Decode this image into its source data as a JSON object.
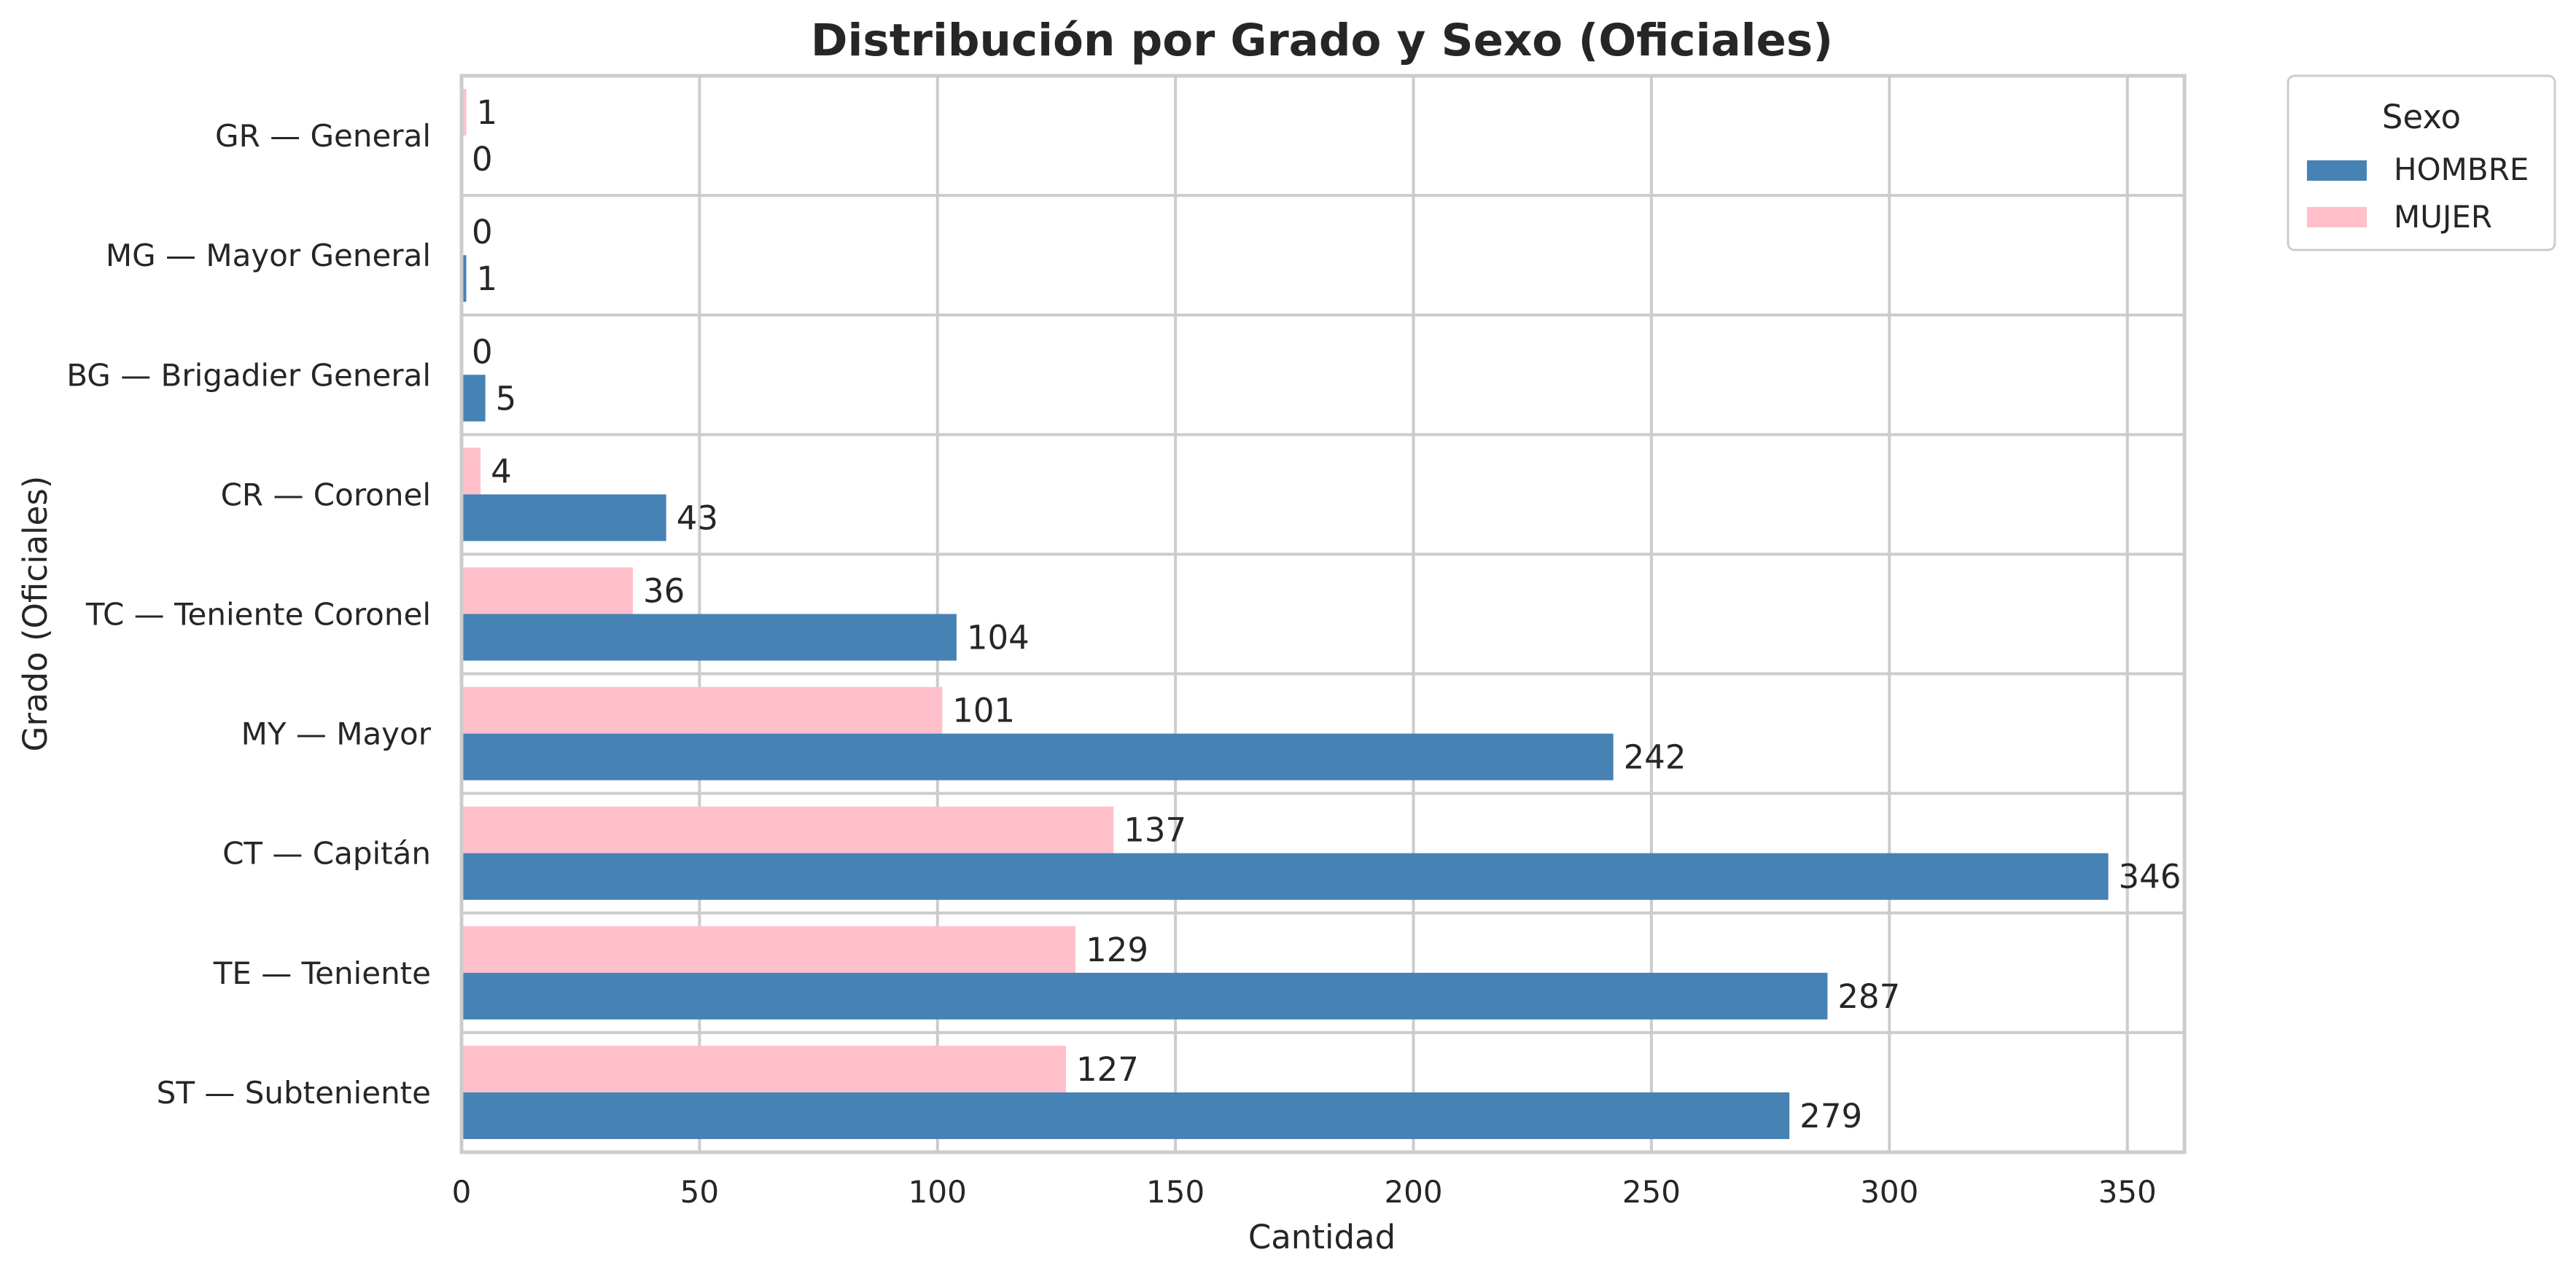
{
  "chart_data": {
    "type": "bar",
    "orientation": "horizontal",
    "title": "Distribución por Grado y Sexo (Oficiales)",
    "xlabel": "Cantidad",
    "ylabel": "Grado (Oficiales)",
    "xlim": [
      0,
      362
    ],
    "xticks": [
      0,
      50,
      100,
      150,
      200,
      250,
      300,
      350
    ],
    "grid": true,
    "legend": {
      "title": "Sexo",
      "placement": "outside-top-right"
    },
    "categories": [
      "GR — General",
      "MG — Mayor General",
      "BG — Brigadier General",
      "CR — Coronel",
      "TC — Teniente Coronel",
      "MY — Mayor",
      "CT — Capitán",
      "TE — Teniente",
      "ST — Subteniente"
    ],
    "series": [
      {
        "name": "HOMBRE",
        "color": "#4682b4",
        "values": [
          0,
          1,
          5,
          43,
          104,
          242,
          346,
          287,
          279
        ]
      },
      {
        "name": "MUJER",
        "color": "#ffc0cb",
        "values": [
          1,
          0,
          0,
          4,
          36,
          101,
          137,
          129,
          127
        ]
      }
    ]
  }
}
